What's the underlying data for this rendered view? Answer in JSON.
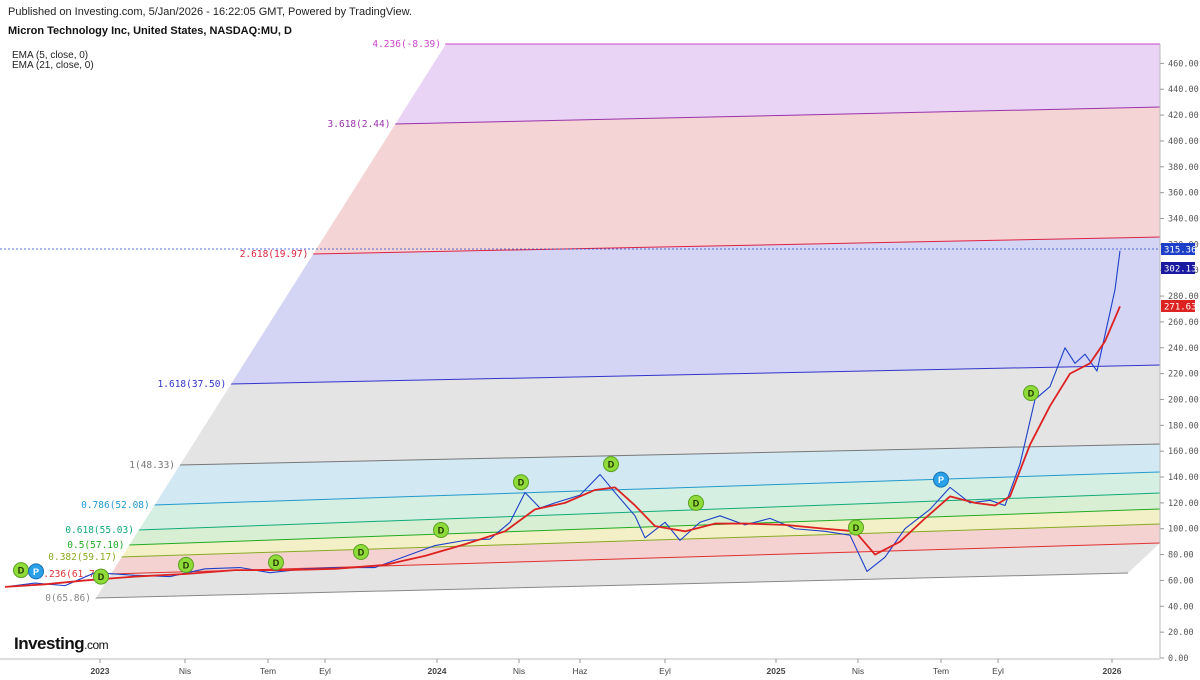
{
  "header": {
    "published": "Published on Investing.com, 5/Jan/2026 - 16:22:05 GMT, Powered by TradingView.",
    "symbol": "Micron Technology Inc, United States, NASDAQ:MU, D"
  },
  "indicators": [
    "EMA (5, close, 0)",
    "EMA (21, close, 0)"
  ],
  "logo": {
    "name": "Investing",
    "suffix": ".com"
  },
  "chart_data": {
    "type": "line",
    "title": "Micron Technology Inc, United States, NASDAQ:MU, D",
    "ylim": [
      0,
      475
    ],
    "y_ticks": [
      0,
      20,
      40,
      60,
      80,
      100,
      120,
      140,
      160,
      180,
      200,
      220,
      240,
      260,
      280,
      300,
      320,
      340,
      360,
      380,
      400,
      420,
      440,
      460
    ],
    "x_ticks": [
      "2023",
      "Nis",
      "Tem",
      "Eyl",
      "2024",
      "Nis",
      "Haz",
      "Eyl",
      "2025",
      "Nis",
      "Tem",
      "Eyl",
      "2026"
    ],
    "price_labels": [
      {
        "value": "315.36",
        "color": "#1e40c8"
      },
      {
        "value": "302.13",
        "color": "#1a1aa0"
      },
      {
        "value": "271.63",
        "color": "#dd2222"
      }
    ],
    "fib_channel": [
      {
        "label": "0(65.86)",
        "color": "#888888"
      },
      {
        "label": "0.236(61.72)",
        "color": "#e03030"
      },
      {
        "label": "0.382(59.17)",
        "color": "#88aa22"
      },
      {
        "label": "0.5(57.10)",
        "color": "#22aa22"
      },
      {
        "label": "0.618(55.03)",
        "color": "#11aa77"
      },
      {
        "label": "0.786(52.08)",
        "color": "#2299cc"
      },
      {
        "label": "1(48.33)",
        "color": "#777777"
      },
      {
        "label": "1.618(37.50)",
        "color": "#3333cc"
      },
      {
        "label": "2.618(19.97)",
        "color": "#dd2244"
      },
      {
        "label": "3.618(2.44)",
        "color": "#9933aa"
      },
      {
        "label": "4.236(-8.39)",
        "color": "#cc44cc"
      }
    ],
    "series": [
      {
        "name": "EMA (5, close, 0)",
        "color": "#1e40c8",
        "values": [
          [
            0,
            55
          ],
          [
            30,
            58
          ],
          [
            60,
            56
          ],
          [
            90,
            66
          ],
          [
            130,
            64
          ],
          [
            165,
            63
          ],
          [
            200,
            69
          ],
          [
            235,
            70
          ],
          [
            265,
            66
          ],
          [
            300,
            69
          ],
          [
            335,
            70
          ],
          [
            370,
            70
          ],
          [
            405,
            80
          ],
          [
            430,
            87
          ],
          [
            460,
            91
          ],
          [
            485,
            92
          ],
          [
            505,
            105
          ],
          [
            520,
            128
          ],
          [
            535,
            116
          ],
          [
            550,
            120
          ],
          [
            575,
            126
          ],
          [
            595,
            142
          ],
          [
            610,
            128
          ],
          [
            630,
            110
          ],
          [
            640,
            93
          ],
          [
            660,
            105
          ],
          [
            675,
            91
          ],
          [
            695,
            105
          ],
          [
            715,
            110
          ],
          [
            740,
            103
          ],
          [
            765,
            108
          ],
          [
            790,
            100
          ],
          [
            820,
            98
          ],
          [
            845,
            95
          ],
          [
            862,
            67
          ],
          [
            880,
            78
          ],
          [
            900,
            100
          ],
          [
            925,
            115
          ],
          [
            945,
            132
          ],
          [
            965,
            120
          ],
          [
            985,
            122
          ],
          [
            1000,
            118
          ],
          [
            1015,
            150
          ],
          [
            1030,
            200
          ],
          [
            1045,
            210
          ],
          [
            1060,
            240
          ],
          [
            1070,
            228
          ],
          [
            1080,
            235
          ],
          [
            1092,
            222
          ],
          [
            1100,
            250
          ],
          [
            1110,
            285
          ],
          [
            1115,
            315
          ]
        ]
      },
      {
        "name": "EMA (21, close, 0)",
        "color": "#dd2222",
        "values": [
          [
            0,
            55
          ],
          [
            40,
            57
          ],
          [
            80,
            60
          ],
          [
            130,
            63
          ],
          [
            180,
            65
          ],
          [
            230,
            68
          ],
          [
            280,
            68
          ],
          [
            330,
            69
          ],
          [
            380,
            72
          ],
          [
            420,
            79
          ],
          [
            460,
            88
          ],
          [
            500,
            98
          ],
          [
            530,
            115
          ],
          [
            560,
            120
          ],
          [
            590,
            130
          ],
          [
            610,
            132
          ],
          [
            630,
            118
          ],
          [
            650,
            102
          ],
          [
            680,
            98
          ],
          [
            710,
            104
          ],
          [
            740,
            104
          ],
          [
            780,
            103
          ],
          [
            820,
            100
          ],
          [
            850,
            98
          ],
          [
            870,
            80
          ],
          [
            895,
            90
          ],
          [
            920,
            108
          ],
          [
            945,
            125
          ],
          [
            970,
            120
          ],
          [
            990,
            118
          ],
          [
            1005,
            125
          ],
          [
            1025,
            165
          ],
          [
            1045,
            195
          ],
          [
            1065,
            220
          ],
          [
            1085,
            228
          ],
          [
            1100,
            245
          ],
          [
            1115,
            272
          ]
        ]
      }
    ],
    "markers": [
      {
        "type": "D",
        "x": 0.0,
        "y": 68
      },
      {
        "type": "P",
        "x": 15,
        "y": 67
      },
      {
        "type": "D",
        "x": 80,
        "y": 63
      },
      {
        "type": "D",
        "x": 165,
        "y": 72
      },
      {
        "type": "D",
        "x": 255,
        "y": 74
      },
      {
        "type": "D",
        "x": 340,
        "y": 82
      },
      {
        "type": "D",
        "x": 420,
        "y": 99
      },
      {
        "type": "D",
        "x": 500,
        "y": 136
      },
      {
        "type": "D",
        "x": 590,
        "y": 150
      },
      {
        "type": "D",
        "x": 675,
        "y": 120
      },
      {
        "type": "D",
        "x": 835,
        "y": 101
      },
      {
        "type": "P",
        "x": 920,
        "y": 138
      },
      {
        "type": "D",
        "x": 1010,
        "y": 205
      }
    ]
  }
}
